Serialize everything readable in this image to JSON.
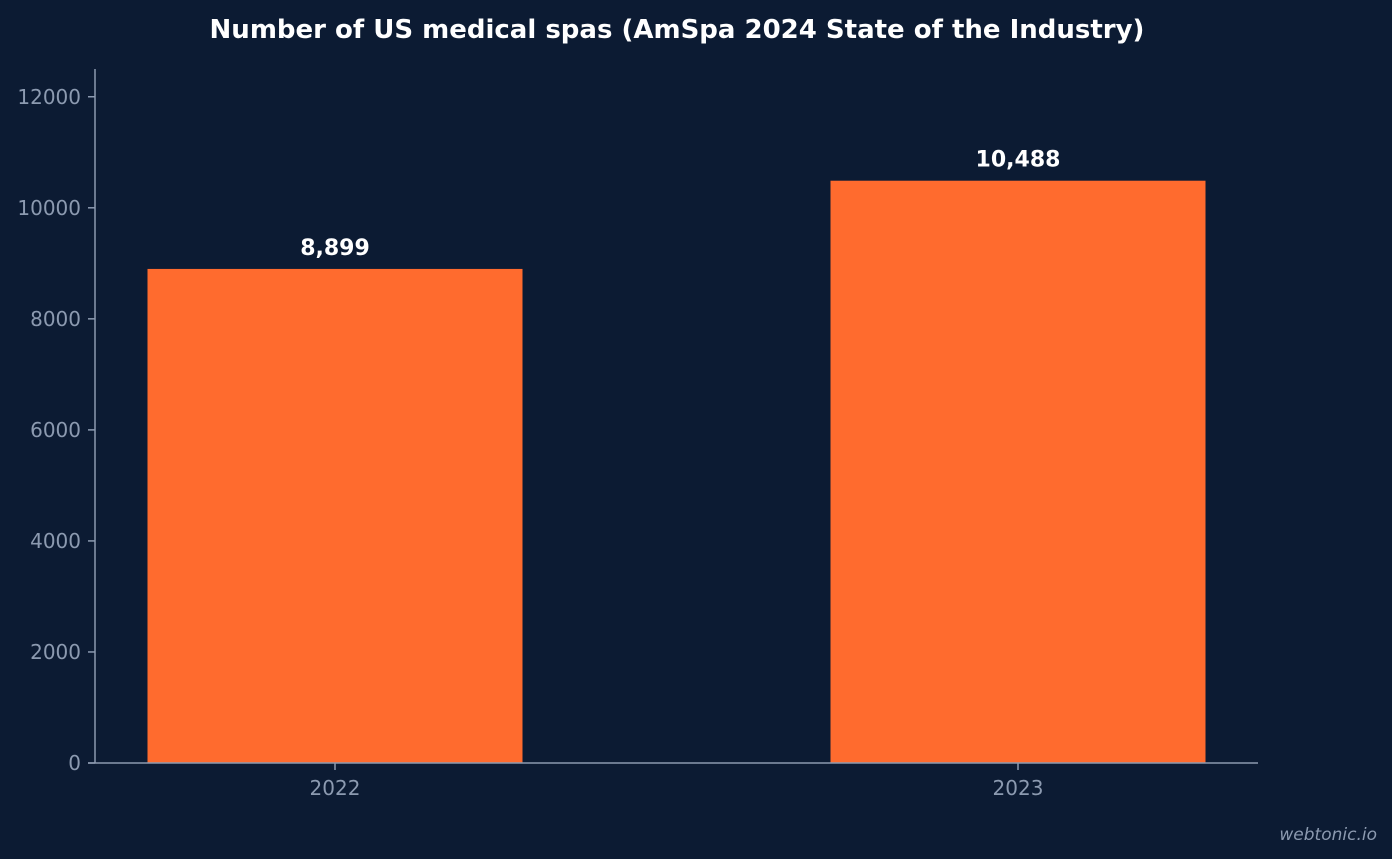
{
  "chart_data": {
    "type": "bar",
    "title": "Number of US medical spas (AmSpa 2024 State of the Industry)",
    "categories": [
      "2022",
      "2023"
    ],
    "values": [
      8899,
      10488
    ],
    "value_labels": [
      "8,899",
      "10,488"
    ],
    "yticks": [
      0,
      2000,
      4000,
      6000,
      8000,
      10000,
      12000
    ],
    "ylim": [
      0,
      12500
    ],
    "xlabel": "",
    "ylabel": "",
    "grid": false,
    "bar_color": "#ff6b2e",
    "background_color": "#0c1b33",
    "axis_color": "#8c9ab0"
  },
  "watermark": "webtonic.io"
}
